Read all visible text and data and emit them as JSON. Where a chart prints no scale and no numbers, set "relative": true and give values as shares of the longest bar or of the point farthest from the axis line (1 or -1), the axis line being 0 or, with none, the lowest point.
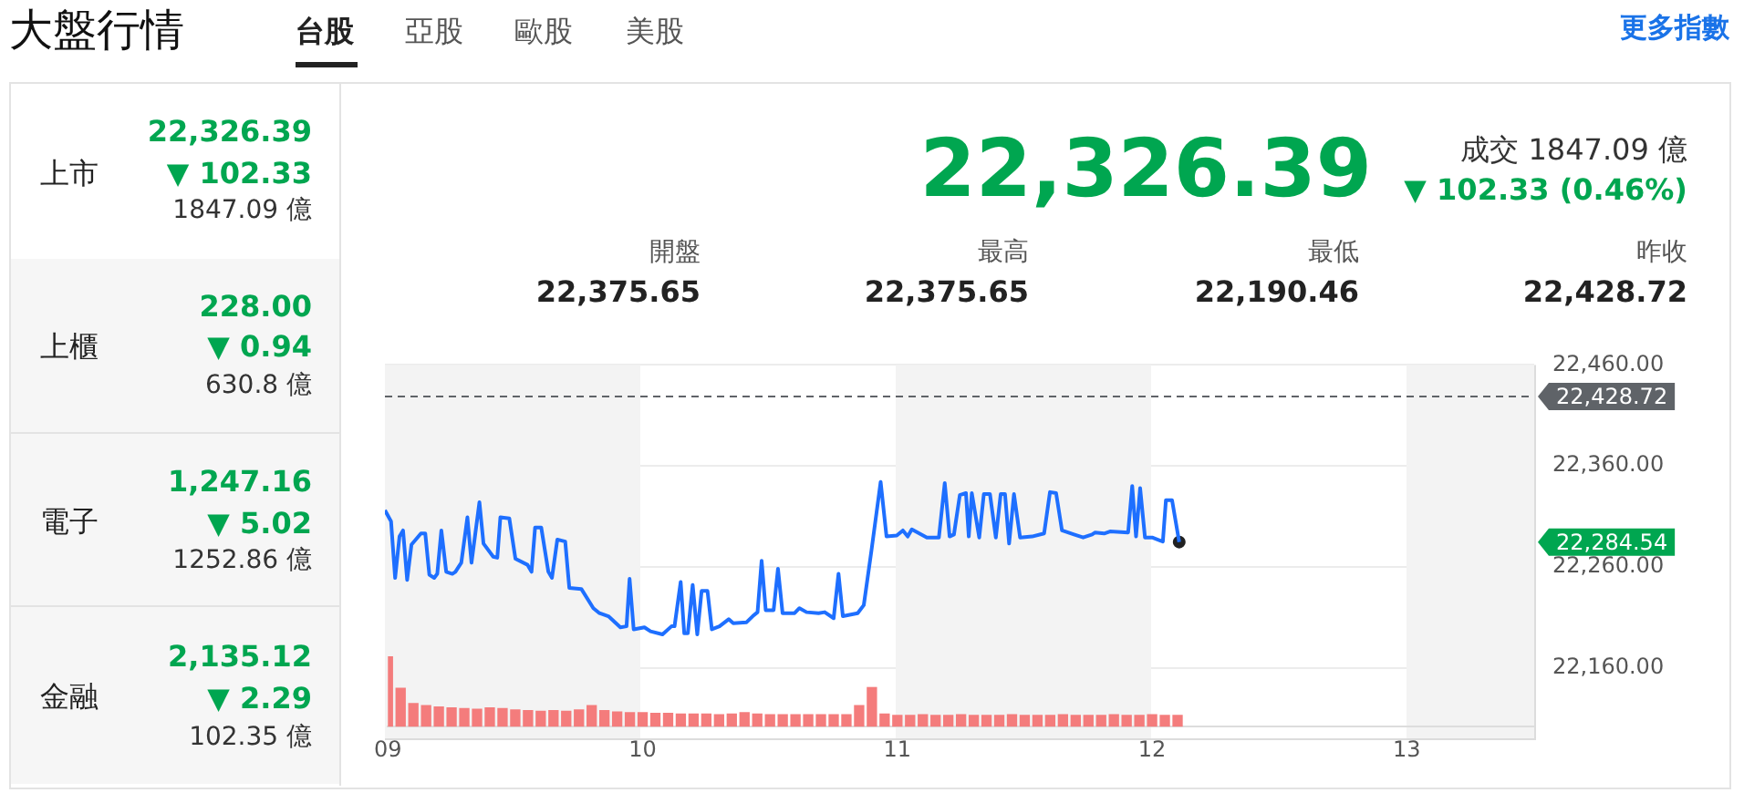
{
  "chart_data": [
    {
      "type": "other",
      "title": "大盤行情",
      "annotations": [
        "台股",
        "亞股",
        "歐股",
        "美股",
        "更多指數",
        "上市",
        "22,326.39",
        "▼ 102.33",
        "1847.09 億",
        "上櫃",
        "228.00",
        "▼ 0.94",
        "630.8 億",
        "電子",
        "1,247.16",
        "▼ 5.02",
        "1252.86 億",
        "金融",
        "2,135.12",
        "▼ 2.29",
        "102.35 億",
        "22,326.39",
        "成交 1847.09 億",
        "▼ 102.33 (0.46%)",
        "開盤",
        "22,375.65",
        "最高",
        "22,375.65",
        "最低",
        "22,190.46",
        "昨收",
        "22,428.72"
      ]
    },
    {
      "type": "line",
      "x": [
        9.0,
        9.024,
        9.04,
        9.057,
        9.071,
        9.087,
        9.104,
        9.141,
        9.158,
        9.174,
        9.193,
        9.205,
        9.221,
        9.24,
        9.264,
        9.276,
        9.299,
        9.323,
        9.339,
        9.37,
        9.386,
        9.424,
        9.44,
        9.452,
        9.487,
        9.511,
        9.558,
        9.574,
        9.588,
        9.612,
        9.64,
        9.654,
        9.675,
        9.706,
        9.722,
        9.769,
        9.816,
        9.84,
        9.875,
        9.922,
        9.946,
        9.958,
        9.974,
        10.016,
        10.04,
        10.087,
        10.122,
        10.134,
        10.158,
        10.172,
        10.186,
        10.205,
        10.223,
        10.24,
        10.263,
        10.28,
        10.31,
        10.346,
        10.364,
        10.416,
        10.44,
        10.459,
        10.475,
        10.491,
        10.522,
        10.539,
        10.557,
        10.604,
        10.623,
        10.651,
        10.698,
        10.722,
        10.757,
        10.776,
        10.793,
        10.851,
        10.875,
        10.905,
        10.941,
        10.964,
        11.004,
        11.028,
        11.047,
        11.063,
        11.122,
        11.169,
        11.192,
        11.211,
        11.228,
        11.251,
        11.275,
        11.286,
        11.298,
        11.327,
        11.345,
        11.369,
        11.392,
        11.411,
        11.428,
        11.444,
        11.463,
        11.487,
        11.534,
        11.581,
        11.604,
        11.628,
        11.651,
        11.698,
        11.734,
        11.769,
        11.781,
        11.816,
        11.839,
        11.91,
        11.926,
        11.941,
        11.957,
        11.976,
        12.004,
        12.046,
        12.058,
        12.082,
        12.11
      ],
      "series": [
        {
          "color": "#1e6fff",
          "values": [
            22316,
            22305,
            22249,
            22290,
            22296,
            22247,
            22282,
            22293,
            22293,
            22252,
            22249,
            22253,
            22296,
            22255,
            22253,
            22255,
            22264,
            22309,
            22264,
            22324,
            22283,
            22270,
            22269,
            22309,
            22308,
            22268,
            22262,
            22255,
            22299,
            22299,
            22255,
            22249,
            22287,
            22285,
            22239,
            22238,
            22219,
            22214,
            22211,
            22200,
            22201,
            22248,
            22198,
            22200,
            22196,
            22193,
            22201,
            22201,
            22245,
            22194,
            22194,
            22242,
            22193,
            22236,
            22236,
            22198,
            22201,
            22208,
            22204,
            22205,
            22211,
            22215,
            22266,
            22217,
            22217,
            22258,
            22214,
            22214,
            22219,
            22215,
            22214,
            22215,
            22209,
            22253,
            22211,
            22214,
            22222,
            22276,
            22344,
            22290,
            22291,
            22296,
            22290,
            22297,
            22289,
            22289,
            22343,
            22290,
            22292,
            22331,
            22333,
            22290,
            22333,
            22289,
            22332,
            22332,
            22289,
            22332,
            22332,
            22283,
            22332,
            22289,
            22290,
            22293,
            22334,
            22333,
            22296,
            22292,
            22289,
            22292,
            22294,
            22293,
            22295,
            22294,
            22340,
            22290,
            22338,
            22289,
            22289,
            22285,
            22326,
            22326,
            22284.54
          ]
        },
        {
          "type": "scatter",
          "x": [
            12.11
          ],
          "color": "#222222",
          "values": [
            22284.54
          ]
        }
      ],
      "xlim": [
        9,
        13.5
      ],
      "ylim": [
        22090,
        22460
      ],
      "yticks": [
        {
          "value": 22160,
          "label": "22,160.00"
        },
        {
          "value": 22260,
          "label": "22,260.00"
        },
        {
          "value": 22360,
          "label": "22,360.00"
        },
        {
          "value": 22460,
          "label": "22,460.00"
        }
      ],
      "grid": "y",
      "tick_labels": "y",
      "ref_lines": [
        {
          "axis": "y",
          "value": 22428.72,
          "label": "22,428.72",
          "color": "#5f6368",
          "line_style": "dashed"
        }
      ],
      "bands": [
        {
          "axis": "x",
          "from": 9,
          "to": 10,
          "color": "#f3f3f3"
        },
        {
          "axis": "x",
          "from": 11,
          "to": 12,
          "color": "#f3f3f3"
        },
        {
          "axis": "x",
          "from": 13,
          "to": 13.5,
          "color": "#f3f3f3"
        }
      ],
      "annotations": [
        "22,284.54"
      ]
    },
    {
      "type": "bar",
      "relative": true,
      "color": "#f47c7c",
      "x": [
        9.0,
        9.05,
        9.1,
        9.15,
        9.2,
        9.25,
        9.3,
        9.35,
        9.4,
        9.45,
        9.5,
        9.55,
        9.6,
        9.65,
        9.7,
        9.75,
        9.8,
        9.85,
        9.9,
        9.95,
        10.0,
        10.05,
        10.1,
        10.15,
        10.2,
        10.25,
        10.3,
        10.35,
        10.4,
        10.45,
        10.5,
        10.55,
        10.6,
        10.65,
        10.7,
        10.75,
        10.8,
        10.85,
        10.9,
        10.95,
        11.0,
        11.05,
        11.1,
        11.15,
        11.2,
        11.25,
        11.3,
        11.35,
        11.4,
        11.45,
        11.5,
        11.55,
        11.6,
        11.65,
        11.7,
        11.75,
        11.8,
        11.85,
        11.9,
        11.95,
        12.0,
        12.05,
        12.1
      ],
      "values": [
        1,
        0.55,
        0.33,
        0.3,
        0.28,
        0.27,
        0.26,
        0.25,
        0.27,
        0.26,
        0.24,
        0.23,
        0.22,
        0.23,
        0.22,
        0.24,
        0.3,
        0.23,
        0.21,
        0.2,
        0.2,
        0.19,
        0.19,
        0.18,
        0.18,
        0.18,
        0.17,
        0.18,
        0.2,
        0.18,
        0.17,
        0.17,
        0.17,
        0.17,
        0.17,
        0.17,
        0.17,
        0.3,
        0.56,
        0.18,
        0.16,
        0.16,
        0.17,
        0.16,
        0.16,
        0.17,
        0.16,
        0.16,
        0.16,
        0.17,
        0.16,
        0.16,
        0.16,
        0.17,
        0.16,
        0.16,
        0.16,
        0.17,
        0.16,
        0.16,
        0.17,
        0.16,
        0.16
      ],
      "xlim": [
        9,
        13.5
      ],
      "xticks": [
        {
          "value": 9,
          "label": "09"
        },
        10,
        11,
        12,
        13
      ],
      "tick_labels": "x"
    }
  ]
}
